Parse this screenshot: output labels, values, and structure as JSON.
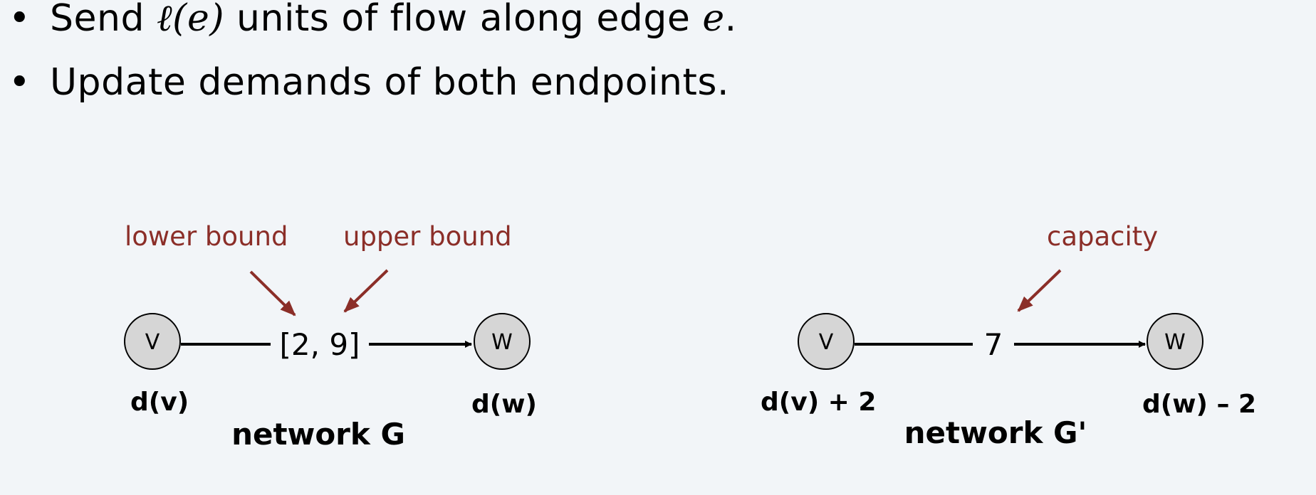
{
  "bullets": {
    "b1_pre": "Send ",
    "b1_math": "ℓ(e)",
    "b1_mid": " units of flow along edge ",
    "b1_var": "e",
    "b1_end": ".",
    "b2": "Update demands of both endpoints."
  },
  "network_g": {
    "annotations": {
      "lower": "lower bound",
      "upper": "upper bound"
    },
    "node_v": "V",
    "node_w": "W",
    "edge_label": "[2, 9]",
    "demand_v": "d(v)",
    "demand_w": "d(w)",
    "title": "network G"
  },
  "network_g_prime": {
    "annotations": {
      "capacity": "capacity"
    },
    "node_v": "V",
    "node_w": "W",
    "edge_label": "7",
    "demand_v": "d(v) + 2",
    "demand_w": "d(w) – 2",
    "title": "network G'"
  },
  "colors": {
    "annotation": "#8b2e28",
    "node_fill": "#d6d6d6",
    "background": "#f2f5f8"
  }
}
